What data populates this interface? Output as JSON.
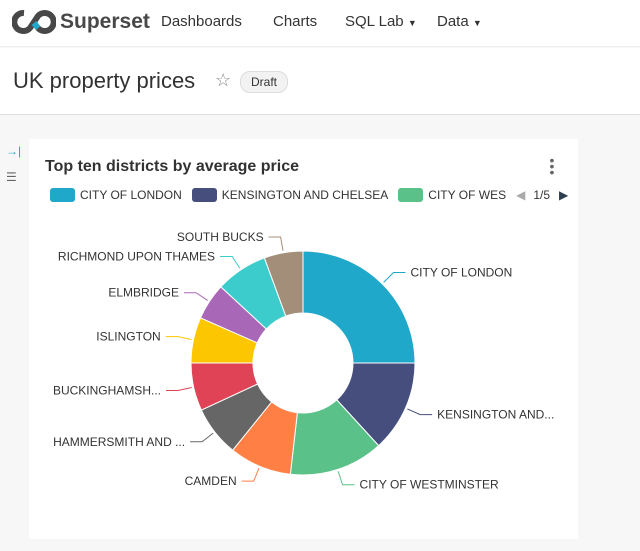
{
  "nav": {
    "brand": "Superset",
    "items": [
      "Dashboards",
      "Charts",
      "SQL Lab",
      "Data"
    ]
  },
  "header": {
    "title": "UK property prices",
    "badge": "Draft"
  },
  "legend": {
    "page": "1/5",
    "visible": [
      "CITY OF LONDON",
      "KENSINGTON AND CHELSEA",
      "CITY OF WES"
    ]
  },
  "chart_data": {
    "type": "pie",
    "donut": true,
    "title": "Top ten districts by average price",
    "categories": [
      "CITY OF LONDON",
      "KENSINGTON AND CHELSEA",
      "CITY OF WESTMINSTER",
      "CAMDEN",
      "HAMMERSMITH AND FULHAM",
      "BUCKINGHAMSHIRE",
      "ISLINGTON",
      "ELMBRIDGE",
      "RICHMOND UPON THAMES",
      "SOUTH BUCKS"
    ],
    "labels": [
      "CITY OF LONDON",
      "KENSINGTON AND...",
      "CITY OF WESTMINSTER",
      "CAMDEN",
      "HAMMERSMITH AND ...",
      "BUCKINGHAMSH...",
      "ISLINGTON",
      "ELMBRIDGE",
      "RICHMOND UPON THAMES",
      "SOUTH BUCKS"
    ],
    "values": [
      25.0,
      13.2,
      13.6,
      9.0,
      7.3,
      6.9,
      6.6,
      5.3,
      7.5,
      5.6
    ],
    "colors": [
      "#1FA8C9",
      "#454E7C",
      "#5AC189",
      "#FF7F44",
      "#666666",
      "#E04355",
      "#FCC700",
      "#A868B7",
      "#3CCCCB",
      "#A38F79"
    ],
    "legend_position": "top"
  }
}
